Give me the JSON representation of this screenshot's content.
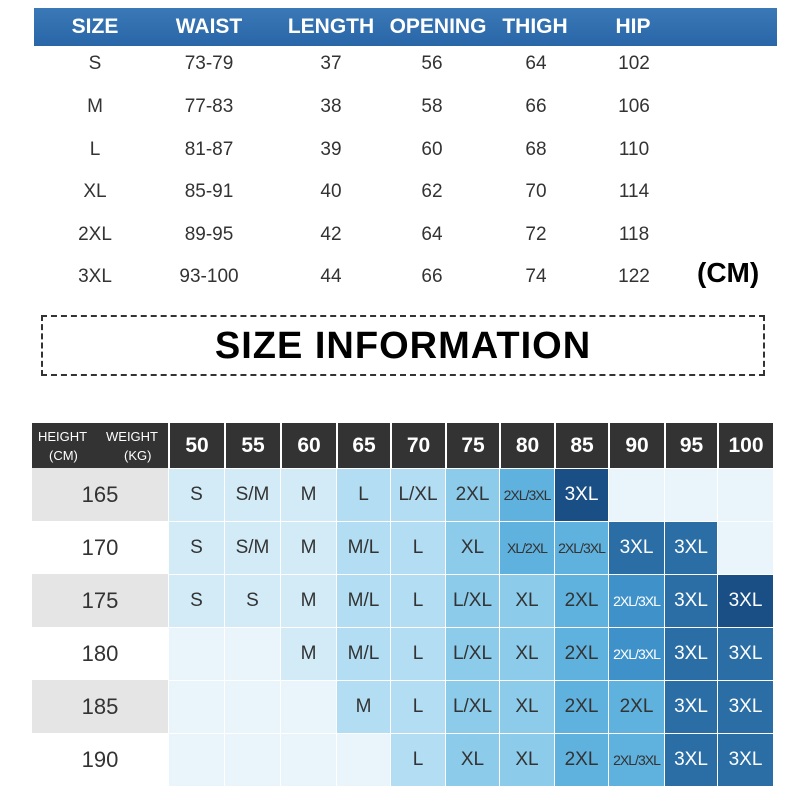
{
  "top_table": {
    "headers": [
      "SIZE",
      "WAIST",
      "LENGTH",
      "OPENING",
      "THIGH",
      "HIP"
    ],
    "rows": [
      [
        "S",
        "73-79",
        "37",
        "56",
        "64",
        "102"
      ],
      [
        "M",
        "77-83",
        "38",
        "58",
        "66",
        "106"
      ],
      [
        "L",
        "81-87",
        "39",
        "60",
        "68",
        "110"
      ],
      [
        "XL",
        "85-91",
        "40",
        "62",
        "70",
        "114"
      ],
      [
        "2XL",
        "89-95",
        "42",
        "64",
        "72",
        "118"
      ],
      [
        "3XL",
        "93-100",
        "44",
        "66",
        "74",
        "122"
      ]
    ],
    "unit": "(CM)",
    "header_color": "#2e6fb0"
  },
  "section_title": "SIZE INFORMATION",
  "size_chart": {
    "corner": {
      "height_label": "HEIGHT",
      "height_unit": "(CM)",
      "weight_label": "WEIGHT",
      "weight_unit": "(KG)"
    },
    "weights": [
      "50",
      "55",
      "60",
      "65",
      "70",
      "75",
      "80",
      "85",
      "90",
      "95",
      "100"
    ],
    "heights": [
      "165",
      "170",
      "175",
      "180",
      "185",
      "190"
    ],
    "sizes": [
      [
        "S",
        "S/M",
        "M",
        "L",
        "L/XL",
        "2XL",
        "2XL/3XL",
        "3XL",
        "",
        "",
        ""
      ],
      [
        "S",
        "S/M",
        "M",
        "M/L",
        "L",
        "XL",
        "XL/2XL",
        "2XL/3XL",
        "3XL",
        "3XL",
        ""
      ],
      [
        "S",
        "S",
        "M",
        "M/L",
        "L",
        "L/XL",
        "XL",
        "2XL",
        "2XL/3XL",
        "3XL",
        "3XL"
      ],
      [
        "",
        "",
        "M",
        "M/L",
        "L",
        "L/XL",
        "XL",
        "2XL",
        "2XL/3XL",
        "3XL",
        "3XL"
      ],
      [
        "",
        "",
        "",
        "M",
        "L",
        "L/XL",
        "XL",
        "2XL",
        "2XL",
        "3XL",
        "3XL"
      ],
      [
        "",
        "",
        "",
        "",
        "L",
        "XL",
        "XL",
        "2XL",
        "2XL/3XL",
        "3XL",
        "3XL"
      ]
    ],
    "header_color": "#333333"
  }
}
